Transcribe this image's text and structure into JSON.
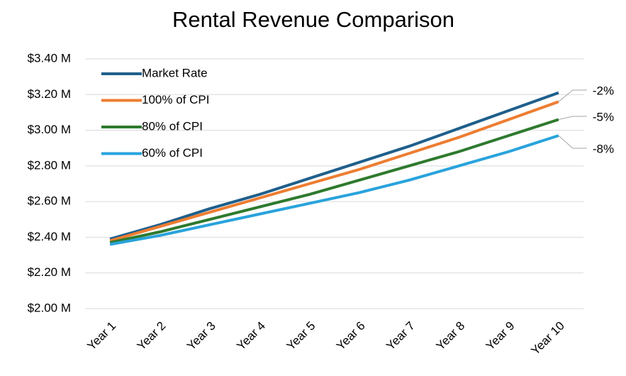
{
  "chart_data": {
    "type": "line",
    "title": "Rental Revenue Comparison",
    "categories": [
      "Year 1",
      "Year 2",
      "Year 3",
      "Year 4",
      "Year 5",
      "Year 6",
      "Year 7",
      "Year 8",
      "Year 9",
      "Year 10"
    ],
    "series": [
      {
        "name": "Market Rate",
        "color": "#1f5f8b",
        "values": [
          2.39,
          2.47,
          2.56,
          2.64,
          2.73,
          2.82,
          2.91,
          3.01,
          3.11,
          3.21
        ]
      },
      {
        "name": "100% of CPI",
        "color": "#ed7d31",
        "values": [
          2.38,
          2.46,
          2.54,
          2.62,
          2.7,
          2.78,
          2.87,
          2.96,
          3.06,
          3.16
        ]
      },
      {
        "name": "80% of CPI",
        "color": "#2e7a2e",
        "values": [
          2.37,
          2.43,
          2.5,
          2.57,
          2.64,
          2.72,
          2.8,
          2.88,
          2.97,
          3.06
        ]
      },
      {
        "name": "60% of CPI",
        "color": "#29a3dc",
        "values": [
          2.36,
          2.41,
          2.47,
          2.53,
          2.59,
          2.65,
          2.72,
          2.8,
          2.88,
          2.97
        ]
      }
    ],
    "annotations": [
      "-2%",
      "-5%",
      "-8%"
    ],
    "ylim": [
      2.0,
      3.4
    ],
    "yticks": [
      {
        "value": 2.0,
        "label": "$2.00 M"
      },
      {
        "value": 2.2,
        "label": "$2.20 M"
      },
      {
        "value": 2.4,
        "label": "$2.40 M"
      },
      {
        "value": 2.6,
        "label": "$2.60 M"
      },
      {
        "value": 2.8,
        "label": "$2.80 M"
      },
      {
        "value": 3.0,
        "label": "$3.00 M"
      },
      {
        "value": 3.2,
        "label": "$3.20 M"
      },
      {
        "value": 3.4,
        "label": "$3.40 M"
      }
    ],
    "grid": true,
    "legend": "upper left"
  }
}
